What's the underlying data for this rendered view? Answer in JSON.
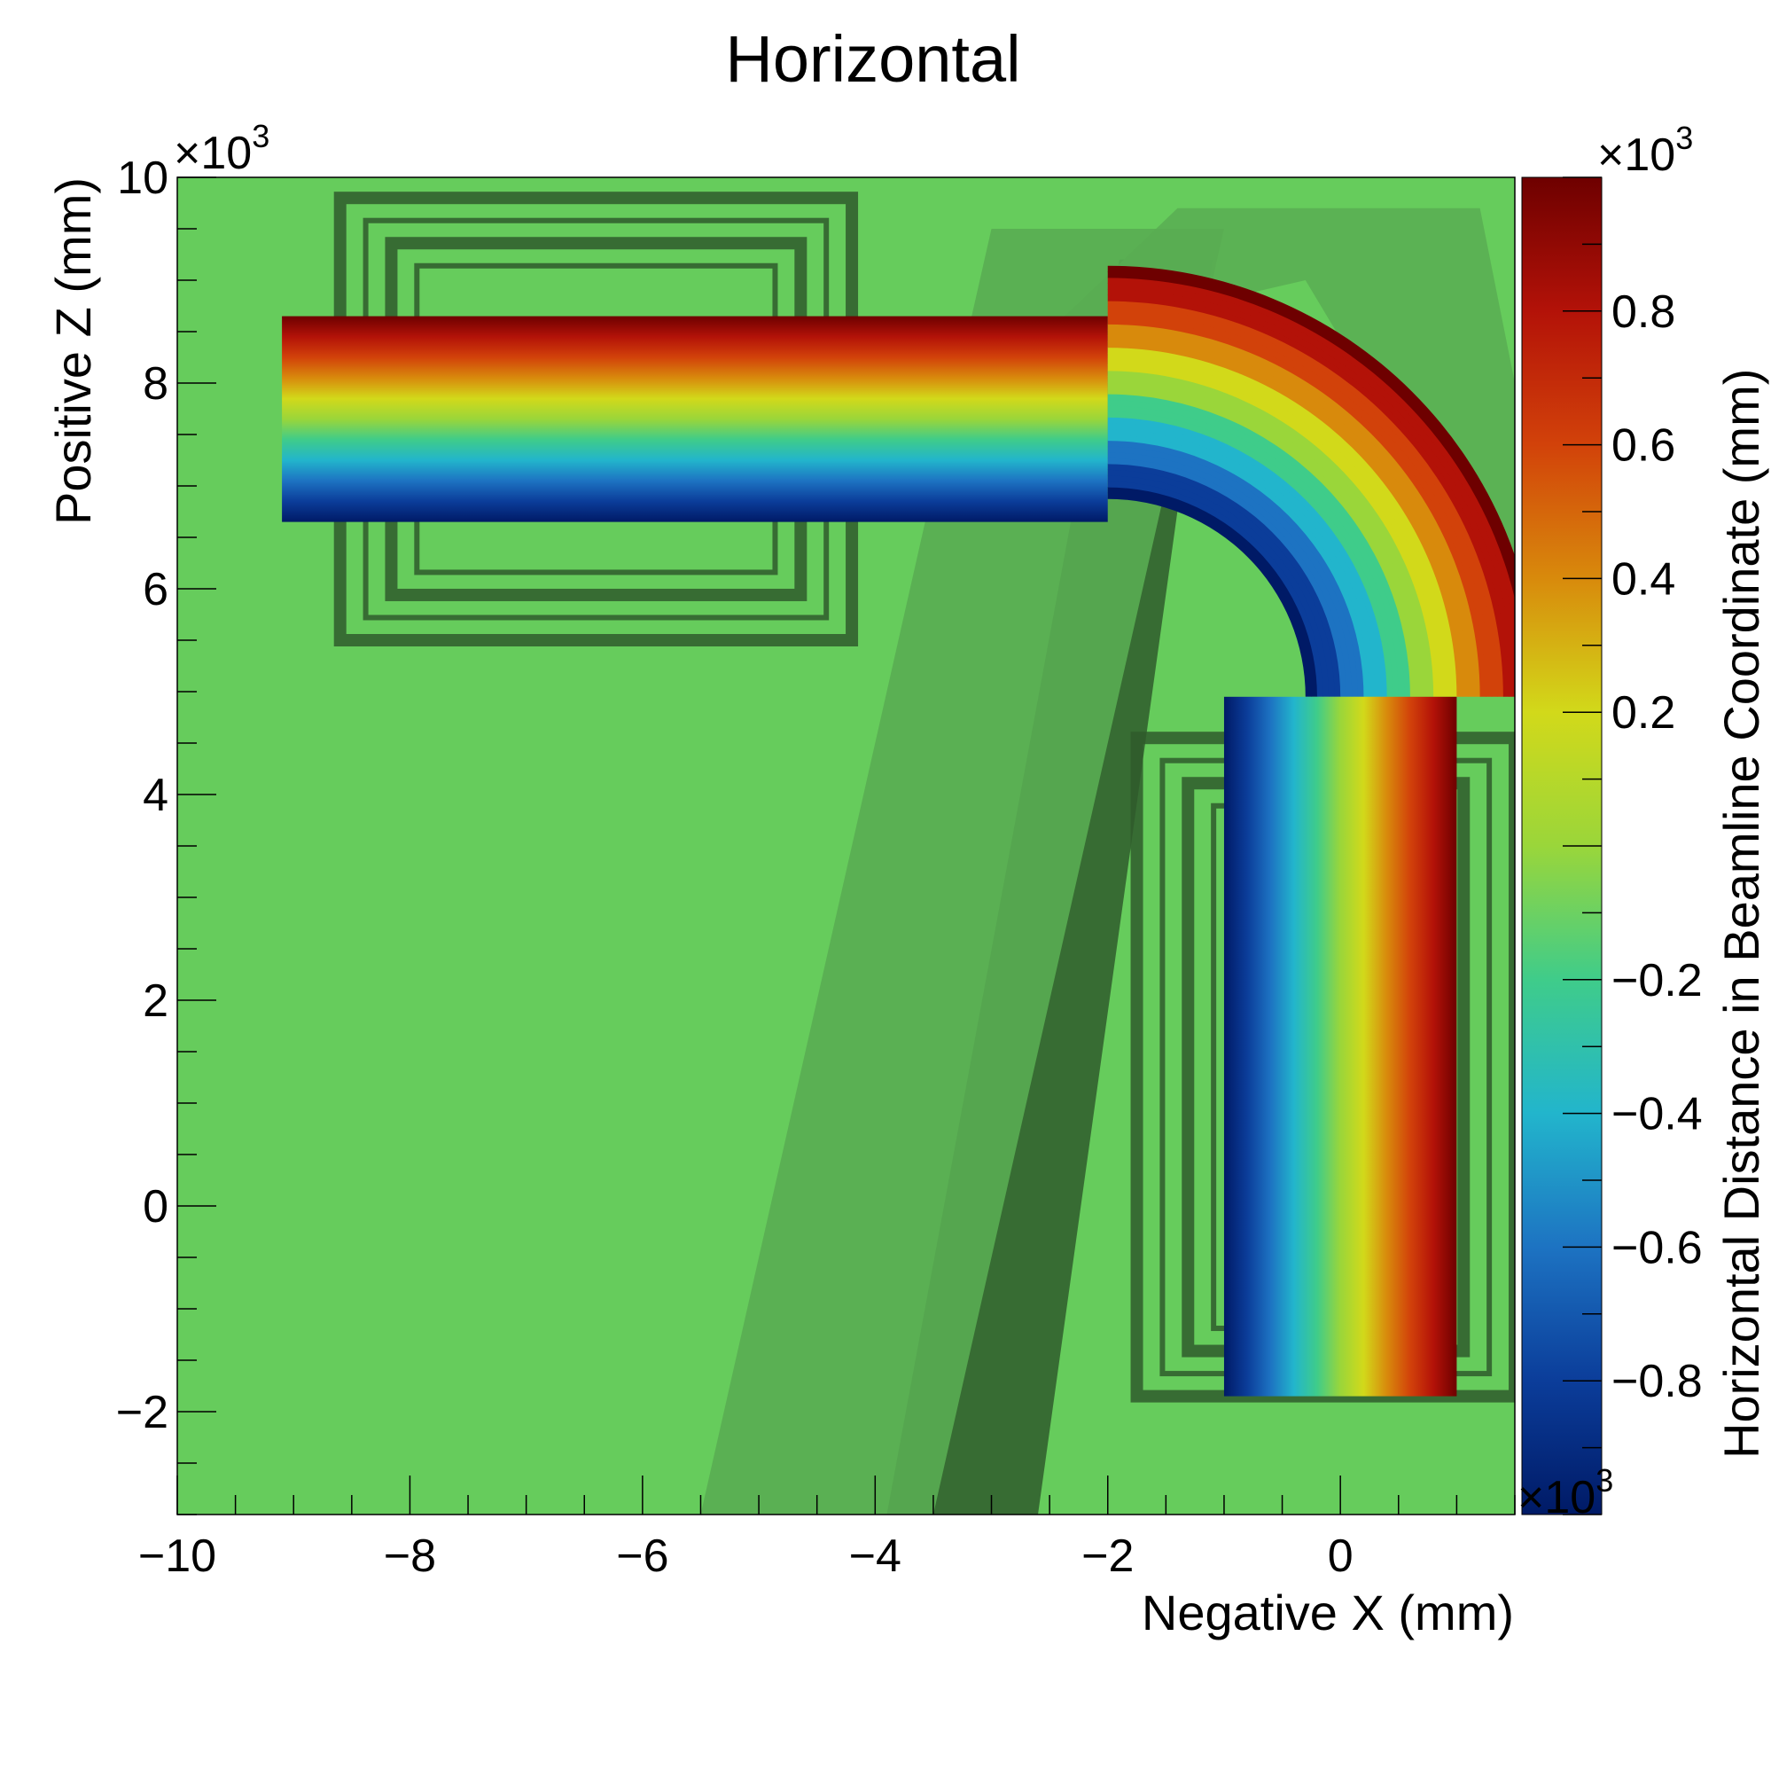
{
  "chart_data": {
    "type": "heatmap",
    "title": "Horizontal",
    "xlabel": "Negative X (mm)",
    "ylabel": "Positive Z (mm)",
    "zlabel": "Horizontal Distance in Beamline Coordinate (mm)",
    "x_multiplier": "×10",
    "y_multiplier": "×10",
    "z_multiplier_top": "×10",
    "z_multiplier_bottom": "×10",
    "multiplier_exponent": "3",
    "xlim": [
      -10,
      1.5
    ],
    "ylim": [
      -3,
      10
    ],
    "zlim": [
      -1,
      1
    ],
    "x_ticks": [
      {
        "value": -10,
        "label": "−10"
      },
      {
        "value": -8,
        "label": "−8"
      },
      {
        "value": -6,
        "label": "−6"
      },
      {
        "value": -4,
        "label": "−4"
      },
      {
        "value": -2,
        "label": "−2"
      },
      {
        "value": 0,
        "label": "0"
      }
    ],
    "y_ticks": [
      {
        "value": -2,
        "label": "−2"
      },
      {
        "value": 0,
        "label": "0"
      },
      {
        "value": 2,
        "label": "2"
      },
      {
        "value": 4,
        "label": "4"
      },
      {
        "value": 6,
        "label": "6"
      },
      {
        "value": 8,
        "label": "8"
      },
      {
        "value": 10,
        "label": "10"
      }
    ],
    "z_ticks": [
      {
        "value": 0.8,
        "label": "0.8"
      },
      {
        "value": 0.6,
        "label": "0.6"
      },
      {
        "value": 0.4,
        "label": "0.4"
      },
      {
        "value": 0.2,
        "label": "0.2"
      },
      {
        "value": -0.2,
        "label": "−0.2"
      },
      {
        "value": -0.4,
        "label": "−0.4"
      },
      {
        "value": -0.6,
        "label": "−0.6"
      },
      {
        "value": -0.8,
        "label": "−0.8"
      }
    ],
    "colors": {
      "background": "#66cc5c",
      "material": "#2f5a2b",
      "material_light": "#59ad52",
      "axis": "#000000",
      "palette": [
        "#001a66",
        "#0b3d9a",
        "#1d73c2",
        "#22b5cc",
        "#3fcc8a",
        "#9ad63a",
        "#d2d91a",
        "#d88a0c",
        "#d2420a",
        "#b31208",
        "#6e0000"
      ]
    },
    "beam": {
      "half_width": 1.0,
      "straight_x_start": -9.1,
      "straight_z_center": 7.65,
      "bend_center_x": -2.0,
      "bend_center_z": 4.95,
      "bend_radius": 2.7,
      "lower_x_center": 0.0,
      "lower_z_end": -1.85
    },
    "shapes": {
      "upper_magnet_x": [
        -8.6,
        -4.2
      ],
      "upper_magnet_z": [
        5.5,
        9.8
      ],
      "lower_magnet_x": [
        -1.75,
        1.5
      ],
      "lower_magnet_z": [
        -1.85,
        4.55
      ],
      "wall_bottom_x": [
        -3.9,
        -2.6
      ],
      "wall_top_x": [
        -1.9,
        -1.1
      ],
      "wall_z": [
        -3,
        9.2
      ]
    }
  }
}
